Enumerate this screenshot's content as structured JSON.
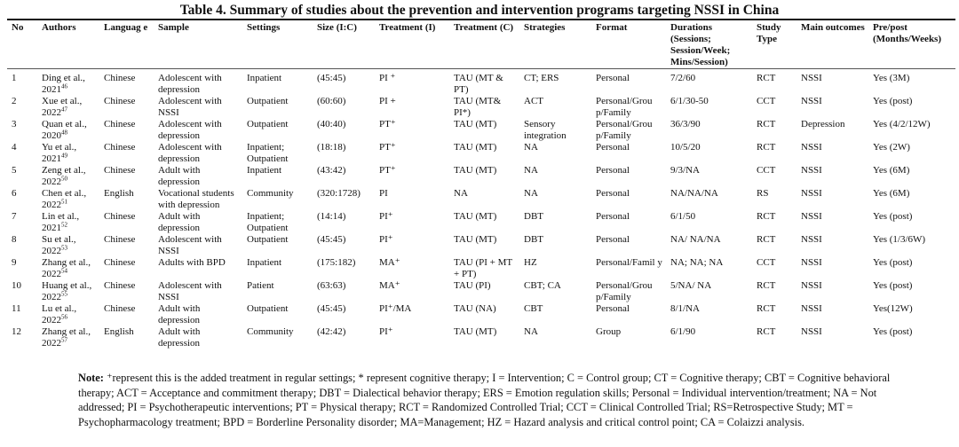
{
  "title": "Table 4. Summary of studies about the prevention and intervention programs targeting NSSI in China",
  "headers": [
    "No",
    "Authors",
    "Languag e",
    "Sample",
    "Settings",
    "Size (I:C)",
    "Treatment (I)",
    "Treatment (C)",
    "Strategies",
    "Format",
    "Durations (Sessions; Session/Week; Mins/Session)",
    "Study Type",
    "Main outcomes",
    "Pre/post (Months/Weeks)"
  ],
  "rows": [
    {
      "no": "1",
      "author": "Ding et al., 2021",
      "ref": "46",
      "lang": "Chinese",
      "sample": "Adolescent with depression",
      "settings": "Inpatient",
      "size": "(45:45)",
      "ti": "PI ⁺",
      "tc": "TAU (MT & PT)",
      "strategies": "CT; ERS",
      "format": "Personal",
      "durations": "7/2/60",
      "type": "RCT",
      "outcome": "NSSI",
      "prepost": "Yes (3M)"
    },
    {
      "no": "2",
      "author": "Xue et al., 2022",
      "ref": "47",
      "lang": "Chinese",
      "sample": "Adolescent with NSSI",
      "settings": "Outpatient",
      "size": "(60:60)",
      "ti": "PI +",
      "tc": "TAU (MT& PI*)",
      "strategies": "ACT",
      "format": "Personal/Grou p/Family",
      "durations": "6/1/30-50",
      "type": "CCT",
      "outcome": "NSSI",
      "prepost": "Yes (post)"
    },
    {
      "no": "3",
      "author": "Quan et al., 2020",
      "ref": "48",
      "lang": "Chinese",
      "sample": "Adolescent with depression",
      "settings": "Outpatient",
      "size": "(40:40)",
      "ti": "PT⁺",
      "tc": "TAU (MT)",
      "strategies": "Sensory integration",
      "format": "Personal/Grou p/Family",
      "durations": "36/3/90",
      "type": "RCT",
      "outcome": "Depression",
      "prepost": "Yes (4/2/12W)"
    },
    {
      "no": "4",
      "author": "Yu et al., 2021",
      "ref": "49",
      "lang": "Chinese",
      "sample": "Adolescent with depression",
      "settings": "Inpatient; Outpatient",
      "size": "(18:18)",
      "ti": "PT⁺",
      "tc": "TAU (MT)",
      "strategies": "NA",
      "format": "Personal",
      "durations": "10/5/20",
      "type": "RCT",
      "outcome": "NSSI",
      "prepost": "Yes (2W)"
    },
    {
      "no": "5",
      "author": "Zeng et al., 2022",
      "ref": "50",
      "lang": "Chinese",
      "sample": "Adult with depression",
      "settings": "Inpatient",
      "size": "(43:42)",
      "ti": "PT⁺",
      "tc": "TAU (MT)",
      "strategies": "NA",
      "format": "Personal",
      "durations": "9/3/NA",
      "type": "CCT",
      "outcome": "NSSI",
      "prepost": "Yes (6M)"
    },
    {
      "no": "6",
      "author": "Chen et al., 2022",
      "ref": "51",
      "lang": "English",
      "sample": "Vocational students with depression",
      "settings": "Community",
      "size": "(320:1728)",
      "ti": "PI",
      "tc": "NA",
      "strategies": "NA",
      "format": "Personal",
      "durations": "NA/NA/NA",
      "type": "RS",
      "outcome": "NSSI",
      "prepost": "Yes (6M)"
    },
    {
      "no": "7",
      "author": "Lin et al., 2021",
      "ref": "52",
      "lang": "Chinese",
      "sample": "Adult with depression",
      "settings": "Inpatient; Outpatient",
      "size": "(14:14)",
      "ti": "PI⁺",
      "tc": "TAU (MT)",
      "strategies": "DBT",
      "format": "Personal",
      "durations": "6/1/50",
      "type": "RCT",
      "outcome": "NSSI",
      "prepost": "Yes (post)"
    },
    {
      "no": "8",
      "author": "Su et al., 2022",
      "ref": "53",
      "lang": "Chinese",
      "sample": "Adolescent with NSSI",
      "settings": "Outpatient",
      "size": "(45:45)",
      "ti": "PI⁺",
      "tc": "TAU (MT)",
      "strategies": "DBT",
      "format": "Personal",
      "durations": "NA/ NA/NA",
      "type": "RCT",
      "outcome": "NSSI",
      "prepost": "Yes (1/3/6W)"
    },
    {
      "no": "9",
      "author": "Zhang et al., 2022",
      "ref": "54",
      "lang": "Chinese",
      "sample": "Adults with BPD",
      "settings": "Inpatient",
      "size": "(175:182)",
      "ti": "MA⁺",
      "tc": "TAU (PI + MT + PT)",
      "strategies": "HZ",
      "format": "Personal/Famil y",
      "durations": "NA; NA; NA",
      "type": "CCT",
      "outcome": "NSSI",
      "prepost": "Yes (post)"
    },
    {
      "no": "10",
      "author": "Huang et al., 2022",
      "ref": "55",
      "lang": "Chinese",
      "sample": "Adolescent with NSSI",
      "settings": "Patient",
      "size": "(63:63)",
      "ti": "MA⁺",
      "tc": "TAU (PI)",
      "strategies": "CBT; CA",
      "format": "Personal/Grou p/Family",
      "durations": "5/NA/ NA",
      "type": "RCT",
      "outcome": "NSSI",
      "prepost": "Yes (post)"
    },
    {
      "no": "11",
      "author": "Lu et al., 2022",
      "ref": "56",
      "lang": "Chinese",
      "sample": "Adult with depression",
      "settings": "Outpatient",
      "size": "(45:45)",
      "ti": "PI⁺/MA",
      "tc": "TAU (NA)",
      "strategies": "CBT",
      "format": "Personal",
      "durations": "8/1/NA",
      "type": "RCT",
      "outcome": "NSSI",
      "prepost": "Yes(12W)"
    },
    {
      "no": "12",
      "author": "Zhang et al., 2022",
      "ref": "57",
      "lang": "English",
      "sample": "Adult with depression",
      "settings": "Community",
      "size": "(42:42)",
      "ti": "PI⁺",
      "tc": "TAU (MT)",
      "strategies": "NA",
      "format": "Group",
      "durations": "6/1/90",
      "type": "RCT",
      "outcome": "NSSI",
      "prepost": "Yes (post)"
    }
  ],
  "note": {
    "label": "Note:",
    "text": " ⁺represent this is the added treatment in regular settings; * represent cognitive therapy; I = Intervention; C = Control group; CT = Cognitive therapy; CBT = Cognitive behavioral therapy; ACT = Acceptance and commitment therapy; DBT = Dialectical behavior therapy; ERS = Emotion regulation skills; Personal = Individual intervention/treatment; NA = Not addressed; PI = Psychotherapeutic interventions; PT = Physical therapy; RCT = Randomized Controlled Trial; CCT = Clinical Controlled Trial; RS=Retrospective Study; MT = Psychopharmacology treatment; BPD = Borderline Personality disorder; MA=Management; HZ = Hazard analysis and critical control point; CA = Colaizzi analysis."
  }
}
